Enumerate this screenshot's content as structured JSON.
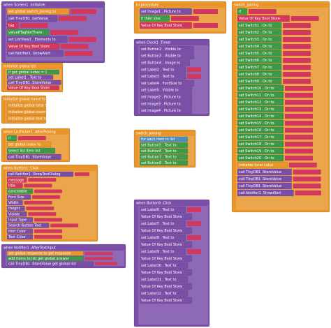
{
  "groups": [
    {
      "header": "when Screen1 .Initialize",
      "color": "#7b4fa8",
      "rows": [
        {
          "text": "set global switch_joining to",
          "color": "#e8962c"
        },
        {
          "text": "call TinyDB1 .GetValue",
          "color": "#7b4fa8"
        },
        {
          "text": "tag",
          "color": "#d2385e"
        },
        {
          "text": "valueIfTagNotThere",
          "color": "#3c9a48"
        },
        {
          "text": "set ListView1 . Elements to",
          "color": "#7b4fa8"
        },
        {
          "text": "Value Of Key Bool Store",
          "color": "#d2385e"
        },
        {
          "text": "call Notifier1 .ShowAlert",
          "color": "#7b4fa8"
        }
      ]
    },
    {
      "header": "initialize global list",
      "color": "#e8962c",
      "rows": [
        {
          "text": "if get global index = 1",
          "color": "#3c9a48"
        },
        {
          "text": "set Label1 . Text to",
          "color": "#7b4fa8"
        },
        {
          "text": "call TinyDB1 .StoreValue",
          "color": "#7b4fa8"
        },
        {
          "text": "Value Of Key Bool Store",
          "color": "#d2385e"
        }
      ]
    },
    {
      "header": "initialize global name to",
      "color": "#e8962c",
      "rows": [
        {
          "text": "initialize global total to",
          "color": "#e8962c"
        },
        {
          "text": "initialize global count to",
          "color": "#e8962c"
        },
        {
          "text": "initialize global text to",
          "color": "#e8962c"
        }
      ]
    },
    {
      "header": "when ListPicker1 .AfterPicking",
      "color": "#e8962c",
      "rows": [
        {
          "text": "if",
          "color": "#3c9a48"
        },
        {
          "text": "set global index to",
          "color": "#e8962c"
        },
        {
          "text": "select list item list",
          "color": "#3c9a48"
        },
        {
          "text": "call TinyDB1 .StoreValue",
          "color": "#7b4fa8"
        }
      ]
    },
    {
      "header": "when Button1 .Click",
      "color": "#e8962c",
      "rows": [
        {
          "text": "call Notifier1 .ShowTextDialog",
          "color": "#7b4fa8"
        },
        {
          "text": "message",
          "color": "#d2385e"
        },
        {
          "text": "title",
          "color": "#d2385e"
        },
        {
          "text": "cancelable",
          "color": "#3c9a48"
        },
        {
          "text": "Font Size",
          "color": "#7b4fa8"
        },
        {
          "text": "Width",
          "color": "#7b4fa8"
        },
        {
          "text": "Height",
          "color": "#7b4fa8"
        },
        {
          "text": "Visible",
          "color": "#7b4fa8"
        },
        {
          "text": "Input Type",
          "color": "#7b4fa8"
        },
        {
          "text": "Search Button Text",
          "color": "#7b4fa8"
        },
        {
          "text": "Hint Color",
          "color": "#7b4fa8"
        },
        {
          "text": "Text Color",
          "color": "#7b4fa8"
        }
      ]
    },
    {
      "header": "when Notifier1 .AfterTextInput",
      "color": "#7b4fa8",
      "rows": [
        {
          "text": "set global response to get response",
          "color": "#e8962c"
        },
        {
          "text": "add items to list get global answer",
          "color": "#3c9a48"
        },
        {
          "text": "call TinyDB1 .StoreValue get global list",
          "color": "#7b4fa8"
        }
      ]
    },
    {
      "header": "to procedure",
      "color": "#e8962c",
      "rows": [
        {
          "text": "set Image1 . Picture to",
          "color": "#7b4fa8"
        },
        {
          "text": "if then else",
          "color": "#3c9a48"
        },
        {
          "text": "Value Of Key Bool Store",
          "color": "#d2385e"
        }
      ]
    },
    {
      "header": "when Clock1 .Timer",
      "color": "#7b4fa8",
      "rows": [
        {
          "text": "set Button2 . Visible to",
          "color": "#7b4fa8"
        },
        {
          "text": "set Button3 . Visible to",
          "color": "#7b4fa8"
        },
        {
          "text": "set Button4 . Image to",
          "color": "#7b4fa8"
        },
        {
          "text": "set Label2 . Text to",
          "color": "#7b4fa8"
        },
        {
          "text": "set Label3 . Text to",
          "color": "#7b4fa8"
        },
        {
          "text": "set Label4 . FontSize to",
          "color": "#7b4fa8"
        },
        {
          "text": "set Label5 . Visible to",
          "color": "#7b4fa8"
        },
        {
          "text": "set Image2 . Picture to",
          "color": "#7b4fa8"
        },
        {
          "text": "set Image3 . Picture to",
          "color": "#7b4fa8"
        },
        {
          "text": "set Image4 . Picture to",
          "color": "#7b4fa8"
        }
      ]
    },
    {
      "header": "switch_joining",
      "color": "#e8962c",
      "rows": [
        {
          "text": "for each item in list",
          "color": "#4a8fc4"
        },
        {
          "text": "set Button5 . Text to",
          "color": "#3c9a48"
        },
        {
          "text": "set Button6 . Text to",
          "color": "#3c9a48"
        },
        {
          "text": "set Button7 . Text to",
          "color": "#3c9a48"
        },
        {
          "text": "set Button8 . Text to",
          "color": "#3c9a48"
        }
      ]
    },
    {
      "header": "when Button9 .Click",
      "color": "#7b4fa8",
      "rows": [
        {
          "text": "set Label6 . Text to",
          "color": "#7b4fa8"
        },
        {
          "text": "Value Of Key Bool Store",
          "color": "#7b4fa8"
        },
        {
          "text": "set Label7 . Text to",
          "color": "#7b4fa8"
        },
        {
          "text": "Value Of Key Bool Store",
          "color": "#7b4fa8"
        },
        {
          "text": "set Label8 . Text to",
          "color": "#7b4fa8"
        },
        {
          "text": "Value Of Key Bool Store",
          "color": "#7b4fa8"
        },
        {
          "text": "set Label9 . Text to",
          "color": "#7b4fa8"
        },
        {
          "text": "Value Of Key Bool Store",
          "color": "#7b4fa8"
        },
        {
          "text": "set Label10 . Text to",
          "color": "#7b4fa8"
        },
        {
          "text": "Value Of Key Bool Store",
          "color": "#7b4fa8"
        },
        {
          "text": "set Label11 . Text to",
          "color": "#7b4fa8"
        },
        {
          "text": "Value Of Key Bool Store",
          "color": "#7b4fa8"
        },
        {
          "text": "set Label12 . Text to",
          "color": "#7b4fa8"
        },
        {
          "text": "Value Of Key Bool Store",
          "color": "#7b4fa8"
        }
      ]
    },
    {
      "header": "switch_joining",
      "color": "#e8962c",
      "rows": [
        {
          "text": "if",
          "color": "#3c9a48"
        },
        {
          "text": "Value Of Key Bool Store",
          "color": "#d2385e"
        },
        {
          "text": "set Switch1 . On to",
          "color": "#3c9a48"
        },
        {
          "text": "set Switch2 . On to",
          "color": "#3c9a48"
        },
        {
          "text": "set Switch3 . On to",
          "color": "#3c9a48"
        },
        {
          "text": "set Switch4 . On to",
          "color": "#3c9a48"
        },
        {
          "text": "set Switch5 . On to",
          "color": "#3c9a48"
        },
        {
          "text": "set Switch6 . On to",
          "color": "#3c9a48"
        },
        {
          "text": "set Switch7 . On to",
          "color": "#3c9a48"
        },
        {
          "text": "set Switch8 . On to",
          "color": "#3c9a48"
        },
        {
          "text": "set Switch9 . On to",
          "color": "#3c9a48"
        },
        {
          "text": "set Switch10 . On to",
          "color": "#3c9a48"
        },
        {
          "text": "set Switch11 . On to",
          "color": "#3c9a48"
        },
        {
          "text": "set Switch12 . On to",
          "color": "#3c9a48"
        },
        {
          "text": "set Switch13 . On to",
          "color": "#3c9a48"
        },
        {
          "text": "set Switch14 . On to",
          "color": "#3c9a48"
        },
        {
          "text": "set Switch15 . On to",
          "color": "#3c9a48"
        },
        {
          "text": "set Switch16 . On to",
          "color": "#3c9a48"
        },
        {
          "text": "set Switch17 . On to",
          "color": "#3c9a48"
        },
        {
          "text": "set Switch18 . On to",
          "color": "#3c9a48"
        },
        {
          "text": "set Switch19 . On to",
          "color": "#3c9a48"
        },
        {
          "text": "set Switch20 . On to",
          "color": "#3c9a48"
        },
        {
          "text": "initialize local value",
          "color": "#e8962c"
        },
        {
          "text": "call TinyDB1 .StoreValue",
          "color": "#7b4fa8"
        },
        {
          "text": "call TinyDB1 .StoreValue",
          "color": "#7b4fa8"
        },
        {
          "text": "call TinyDB1 .StoreValue",
          "color": "#7b4fa8"
        },
        {
          "text": "call Notifier1 .ShowAlert",
          "color": "#7b4fa8"
        }
      ]
    }
  ]
}
